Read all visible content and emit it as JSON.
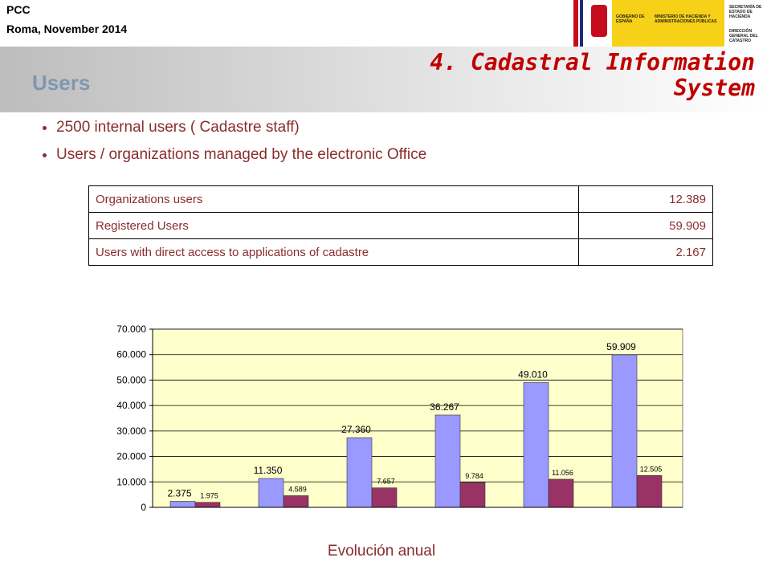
{
  "header": {
    "event": "PCC",
    "place_date": "Roma, November 2014",
    "logo": {
      "gov": "GOBIERNO DE ESPAÑA",
      "ministry": "MINISTERIO DE HACIENDA Y ADMINISTRACIONES PÚBLICAS",
      "secretary": "SECRETARÍA DE ESTADO DE HACIENDA",
      "directorate": "DIRECCIÓN GENERAL DEL CATASTRO"
    }
  },
  "section_title": "4. Cadastral Information System",
  "slide_title": "Users",
  "bullets": [
    "2500 internal users ( Cadastre staff)",
    "Users / organizations managed by the electronic Office"
  ],
  "table": {
    "rows": [
      [
        "Organizations users",
        "12.389"
      ],
      [
        "Registered Users",
        "59.909"
      ],
      [
        "Users with direct access to applications of cadastre",
        "2.167"
      ]
    ]
  },
  "chart_data": {
    "type": "bar",
    "categories": [
      null,
      null,
      null,
      null,
      null,
      null
    ],
    "series": [
      {
        "color": "#9999ff",
        "values": [
          2375,
          11350,
          27360,
          36267,
          49010,
          59909
        ],
        "value_labels": [
          "2.375",
          "11.350",
          "27.360",
          "36.267",
          "49.010",
          "59.909"
        ]
      },
      {
        "color": "#993366",
        "values": [
          1975,
          4589,
          7657,
          9784,
          11056,
          12505
        ],
        "value_labels": [
          "1.975",
          "4.589",
          "7.657",
          "9.784",
          "11.056",
          "12.505"
        ]
      }
    ],
    "ylim": [
      0,
      70000
    ],
    "yticks": [
      0,
      {
        "value": 10000,
        "label": "10.000"
      },
      {
        "value": 20000,
        "label": "20.000"
      },
      {
        "value": 30000,
        "label": "30.000"
      },
      {
        "value": 40000,
        "label": "40.000"
      },
      {
        "value": 50000,
        "label": "50.000"
      },
      {
        "value": 60000,
        "label": "60.000"
      },
      {
        "value": 70000,
        "label": "70.000"
      }
    ],
    "grid": true,
    "plot_background": "#ffffcc"
  },
  "caption": "Evolución anual"
}
